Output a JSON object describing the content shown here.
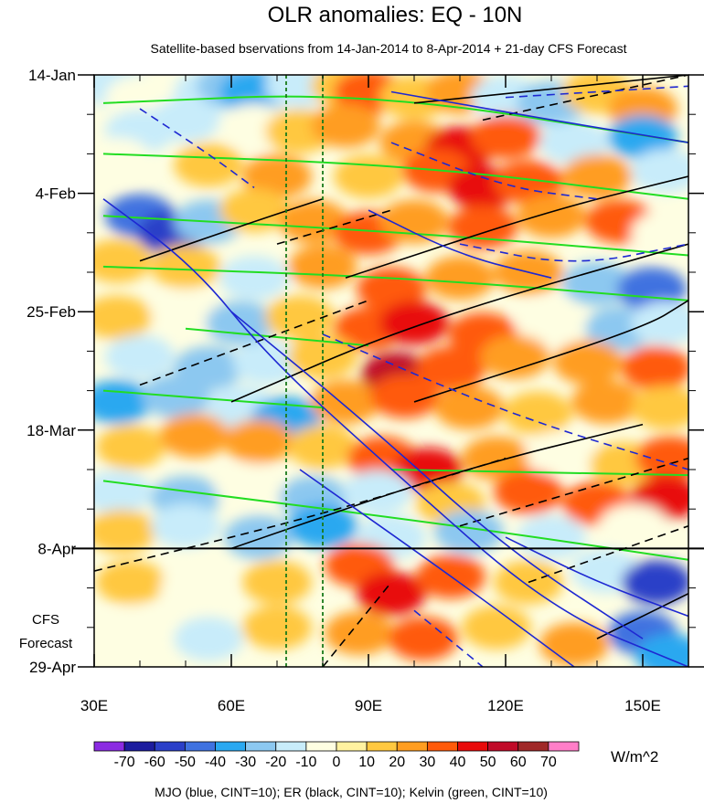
{
  "chart_data": {
    "type": "heatmap",
    "title": "OLR anomalies: EQ - 10N",
    "subtitle": "Satellite-based bservations from 14-Jan-2014 to 8-Apr-2014 + 21-day CFS Forecast",
    "x_ticks": [
      {
        "value": 30,
        "label": "30E"
      },
      {
        "value": 60,
        "label": "60E"
      },
      {
        "value": 90,
        "label": "90E"
      },
      {
        "value": 120,
        "label": "120E"
      },
      {
        "value": 150,
        "label": "150E"
      }
    ],
    "xlim": [
      30,
      160
    ],
    "y_ticks": [
      {
        "day": 0,
        "label": "14-Jan"
      },
      {
        "day": 21,
        "label": "4-Feb"
      },
      {
        "day": 42,
        "label": "25-Feb"
      },
      {
        "day": 63,
        "label": "18-Mar"
      },
      {
        "day": 84,
        "label": "8-Apr"
      },
      {
        "day": 105,
        "label": "29-Apr"
      }
    ],
    "ylim_days": [
      0,
      105
    ],
    "forecast_start_day": 84,
    "forecast_label_line1": "CFS",
    "forecast_label_line2": "Forecast",
    "reference_lines_lon": [
      72,
      80
    ],
    "colorbar": {
      "unit": "W/m^2",
      "levels": [
        "-70",
        "-60",
        "-50",
        "-40",
        "-30",
        "-20",
        "-10",
        "0",
        "10",
        "20",
        "30",
        "40",
        "50",
        "60",
        "70"
      ],
      "colors": [
        "#8b2be2",
        "#1c1c9e",
        "#2a3fc8",
        "#3f72e0",
        "#2aa8f0",
        "#8cc8f0",
        "#c8ecfa",
        "#fefee2",
        "#fff2a0",
        "#ffc840",
        "#ff9d20",
        "#ff5a0a",
        "#e80a0a",
        "#c00a28",
        "#a02828",
        "#ff7ec8"
      ]
    },
    "anomaly_cells": [
      {
        "lon": 35,
        "day": 2,
        "v": -15
      },
      {
        "lon": 40,
        "day": 4,
        "v": -10
      },
      {
        "lon": 55,
        "day": 3,
        "v": -15
      },
      {
        "lon": 60,
        "day": 2,
        "v": -25
      },
      {
        "lon": 65,
        "day": 3,
        "v": -35
      },
      {
        "lon": 75,
        "day": 2,
        "v": -20
      },
      {
        "lon": 85,
        "day": 2,
        "v": 15
      },
      {
        "lon": 90,
        "day": 3,
        "v": 35
      },
      {
        "lon": 100,
        "day": 4,
        "v": 15
      },
      {
        "lon": 110,
        "day": 3,
        "v": 20
      },
      {
        "lon": 120,
        "day": 4,
        "v": -20
      },
      {
        "lon": 130,
        "day": 5,
        "v": -30
      },
      {
        "lon": 140,
        "day": 3,
        "v": 15
      },
      {
        "lon": 150,
        "day": 6,
        "v": 20
      },
      {
        "lon": 40,
        "day": 10,
        "v": -15
      },
      {
        "lon": 50,
        "day": 8,
        "v": -20
      },
      {
        "lon": 65,
        "day": 9,
        "v": -10
      },
      {
        "lon": 75,
        "day": 10,
        "v": 15
      },
      {
        "lon": 85,
        "day": 9,
        "v": 20
      },
      {
        "lon": 100,
        "day": 12,
        "v": 25
      },
      {
        "lon": 110,
        "day": 13,
        "v": 45
      },
      {
        "lon": 120,
        "day": 11,
        "v": 30
      },
      {
        "lon": 135,
        "day": 12,
        "v": -15
      },
      {
        "lon": 150,
        "day": 11,
        "v": -35
      },
      {
        "lon": 35,
        "day": 15,
        "v": -10
      },
      {
        "lon": 55,
        "day": 16,
        "v": 15
      },
      {
        "lon": 70,
        "day": 18,
        "v": 20
      },
      {
        "lon": 90,
        "day": 18,
        "v": 15
      },
      {
        "lon": 105,
        "day": 17,
        "v": 30
      },
      {
        "lon": 115,
        "day": 20,
        "v": 45
      },
      {
        "lon": 125,
        "day": 19,
        "v": 30
      },
      {
        "lon": 140,
        "day": 18,
        "v": 20
      },
      {
        "lon": 155,
        "day": 17,
        "v": -20
      },
      {
        "lon": 40,
        "day": 25,
        "v": -45
      },
      {
        "lon": 47,
        "day": 28,
        "v": -60
      },
      {
        "lon": 55,
        "day": 26,
        "v": -30
      },
      {
        "lon": 65,
        "day": 24,
        "v": 15
      },
      {
        "lon": 78,
        "day": 26,
        "v": 25
      },
      {
        "lon": 90,
        "day": 28,
        "v": 30
      },
      {
        "lon": 100,
        "day": 26,
        "v": 20
      },
      {
        "lon": 115,
        "day": 27,
        "v": 35
      },
      {
        "lon": 130,
        "day": 25,
        "v": 25
      },
      {
        "lon": 145,
        "day": 26,
        "v": 30
      },
      {
        "lon": 155,
        "day": 28,
        "v": -10
      },
      {
        "lon": 35,
        "day": 33,
        "v": 15
      },
      {
        "lon": 50,
        "day": 34,
        "v": 10
      },
      {
        "lon": 65,
        "day": 36,
        "v": -15
      },
      {
        "lon": 80,
        "day": 34,
        "v": 20
      },
      {
        "lon": 95,
        "day": 38,
        "v": 30
      },
      {
        "lon": 110,
        "day": 36,
        "v": 20
      },
      {
        "lon": 125,
        "day": 35,
        "v": 25
      },
      {
        "lon": 140,
        "day": 37,
        "v": -25
      },
      {
        "lon": 152,
        "day": 38,
        "v": -50
      },
      {
        "lon": 35,
        "day": 43,
        "v": 10
      },
      {
        "lon": 50,
        "day": 42,
        "v": -10
      },
      {
        "lon": 62,
        "day": 44,
        "v": -25
      },
      {
        "lon": 75,
        "day": 43,
        "v": 15
      },
      {
        "lon": 90,
        "day": 45,
        "v": 35
      },
      {
        "lon": 100,
        "day": 44,
        "v": 40
      },
      {
        "lon": 115,
        "day": 46,
        "v": 30
      },
      {
        "lon": 130,
        "day": 44,
        "v": -10
      },
      {
        "lon": 145,
        "day": 45,
        "v": -30
      },
      {
        "lon": 155,
        "day": 44,
        "v": -15
      },
      {
        "lon": 40,
        "day": 50,
        "v": -20
      },
      {
        "lon": 55,
        "day": 52,
        "v": -30
      },
      {
        "lon": 68,
        "day": 51,
        "v": -20
      },
      {
        "lon": 80,
        "day": 50,
        "v": 15
      },
      {
        "lon": 96,
        "day": 53,
        "v": 55
      },
      {
        "lon": 108,
        "day": 52,
        "v": 30
      },
      {
        "lon": 122,
        "day": 50,
        "v": 20
      },
      {
        "lon": 138,
        "day": 51,
        "v": 25
      },
      {
        "lon": 153,
        "day": 52,
        "v": 35
      },
      {
        "lon": 35,
        "day": 58,
        "v": -40
      },
      {
        "lon": 48,
        "day": 57,
        "v": -30
      },
      {
        "lon": 62,
        "day": 59,
        "v": -20
      },
      {
        "lon": 72,
        "day": 61,
        "v": -35
      },
      {
        "lon": 85,
        "day": 58,
        "v": 20
      },
      {
        "lon": 98,
        "day": 57,
        "v": 35
      },
      {
        "lon": 112,
        "day": 59,
        "v": 20
      },
      {
        "lon": 127,
        "day": 60,
        "v": 15
      },
      {
        "lon": 142,
        "day": 58,
        "v": 25
      },
      {
        "lon": 155,
        "day": 59,
        "v": 15
      },
      {
        "lon": 38,
        "day": 66,
        "v": 15
      },
      {
        "lon": 52,
        "day": 64,
        "v": 20
      },
      {
        "lon": 66,
        "day": 65,
        "v": 25
      },
      {
        "lon": 80,
        "day": 66,
        "v": 15
      },
      {
        "lon": 93,
        "day": 68,
        "v": 35
      },
      {
        "lon": 103,
        "day": 70,
        "v": 45
      },
      {
        "lon": 118,
        "day": 68,
        "v": 20
      },
      {
        "lon": 132,
        "day": 67,
        "v": -10
      },
      {
        "lon": 146,
        "day": 69,
        "v": 15
      },
      {
        "lon": 156,
        "day": 68,
        "v": 30
      },
      {
        "lon": 35,
        "day": 74,
        "v": -20
      },
      {
        "lon": 50,
        "day": 75,
        "v": -25
      },
      {
        "lon": 64,
        "day": 73,
        "v": -10
      },
      {
        "lon": 78,
        "day": 75,
        "v": -30
      },
      {
        "lon": 92,
        "day": 74,
        "v": -20
      },
      {
        "lon": 108,
        "day": 76,
        "v": 15
      },
      {
        "lon": 125,
        "day": 74,
        "v": 30
      },
      {
        "lon": 140,
        "day": 76,
        "v": 35
      },
      {
        "lon": 155,
        "day": 75,
        "v": 45
      },
      {
        "lon": 36,
        "day": 81,
        "v": 10
      },
      {
        "lon": 50,
        "day": 80,
        "v": -15
      },
      {
        "lon": 66,
        "day": 82,
        "v": -25
      },
      {
        "lon": 80,
        "day": 80,
        "v": -40
      },
      {
        "lon": 95,
        "day": 82,
        "v": -20
      },
      {
        "lon": 112,
        "day": 81,
        "v": -30
      },
      {
        "lon": 130,
        "day": 82,
        "v": -20
      },
      {
        "lon": 148,
        "day": 80,
        "v": -10
      },
      {
        "lon": 38,
        "day": 90,
        "v": 15
      },
      {
        "lon": 52,
        "day": 91,
        "v": -10
      },
      {
        "lon": 70,
        "day": 90,
        "v": 10
      },
      {
        "lon": 88,
        "day": 87,
        "v": 30
      },
      {
        "lon": 95,
        "day": 92,
        "v": 45
      },
      {
        "lon": 108,
        "day": 89,
        "v": 30
      },
      {
        "lon": 125,
        "day": 90,
        "v": 15
      },
      {
        "lon": 142,
        "day": 88,
        "v": -15
      },
      {
        "lon": 153,
        "day": 90,
        "v": -60
      },
      {
        "lon": 40,
        "day": 98,
        "v": -10
      },
      {
        "lon": 55,
        "day": 100,
        "v": -20
      },
      {
        "lon": 70,
        "day": 98,
        "v": 10
      },
      {
        "lon": 88,
        "day": 99,
        "v": 25
      },
      {
        "lon": 102,
        "day": 100,
        "v": 30
      },
      {
        "lon": 118,
        "day": 98,
        "v": 15
      },
      {
        "lon": 135,
        "day": 101,
        "v": 20
      },
      {
        "lon": 150,
        "day": 99,
        "v": -50
      },
      {
        "lon": 156,
        "day": 103,
        "v": -40
      }
    ],
    "contour_groups": [
      {
        "name": "MJO (blue, CINT=10)",
        "color": "#1e28d2"
      },
      {
        "name": "ER (black, CINT=10)",
        "color": "#000000"
      },
      {
        "name": "Kelvin (green, CINT=10)",
        "color": "#22dd22"
      }
    ],
    "footer": "MJO (blue, CINT=10); ER (black, CINT=10); Kelvin (green, CINT=10)"
  }
}
